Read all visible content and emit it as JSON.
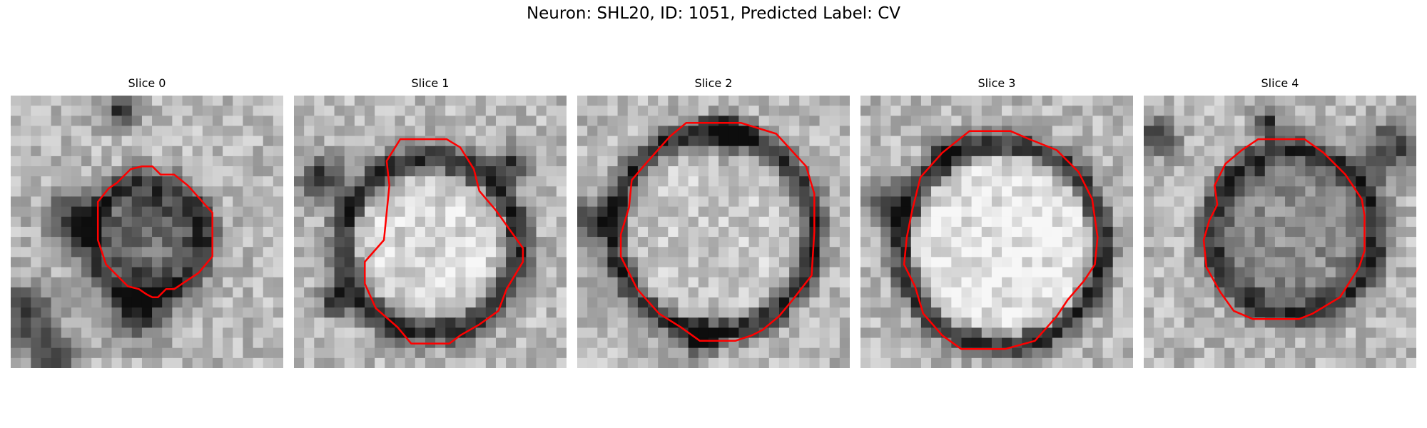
{
  "figure": {
    "title": "Neuron: SHL20, ID: 1051, Predicted Label: CV"
  },
  "slices": [
    {
      "label": "Slice 0"
    },
    {
      "label": "Slice 1"
    },
    {
      "label": "Slice 2"
    },
    {
      "label": "Slice 3"
    },
    {
      "label": "Slice 4"
    }
  ],
  "contour_color": "#ff0000"
}
